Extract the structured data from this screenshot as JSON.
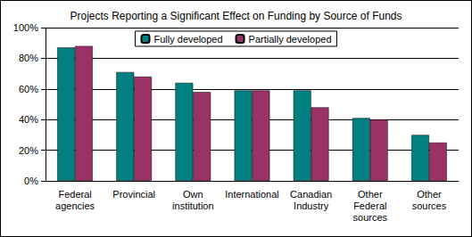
{
  "chart_data": {
    "type": "bar",
    "title": "Projects Reporting a Significant Effect on Funding by Source of Funds",
    "categories": [
      "Federal agencies",
      "Provincial",
      "Own institution",
      "International",
      "Canadian Industry",
      "Other Federal sources",
      "Other sources"
    ],
    "series": [
      {
        "name": "Fully developed",
        "color": "#008080",
        "values": [
          87,
          71,
          64,
          59,
          59,
          41,
          30
        ]
      },
      {
        "name": "Partially developed",
        "color": "#993366",
        "values": [
          88,
          68,
          58,
          59,
          48,
          40,
          25
        ]
      }
    ],
    "ylim": [
      0,
      100
    ],
    "yticks": [
      {
        "value": 0,
        "label": "0%"
      },
      {
        "value": 20,
        "label": "20%"
      },
      {
        "value": 40,
        "label": "40%"
      },
      {
        "value": 60,
        "label": "60%"
      },
      {
        "value": 80,
        "label": "80%"
      },
      {
        "value": 100,
        "label": "100%"
      }
    ],
    "grid": true,
    "legend": "top"
  }
}
